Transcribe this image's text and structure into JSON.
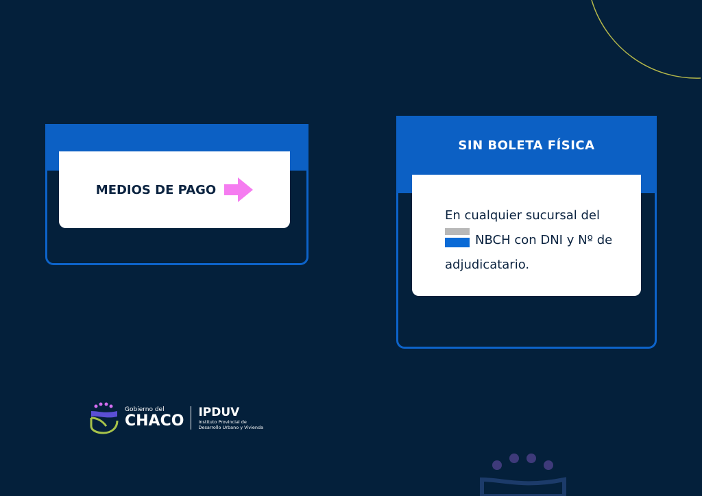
{
  "card_left": {
    "label": "MEDIOS DE PAGO",
    "icon": "arrow-right-icon",
    "arrow_color": "#f57cf0"
  },
  "card_right": {
    "title": "SIN BOLETA FÍSICA",
    "line1": "En cualquier sucursal del",
    "line2": "NBCH con DNI y Nº de",
    "line3": "adjudicatario.",
    "icon": "nbch-logo-icon"
  },
  "footer": {
    "gov_small": "Gobierno del",
    "gov_big": "CHACO",
    "org": "IPDUV",
    "org_line1": "Instituto Provincial de",
    "org_line2": "Desarrollo Urbano y Vivienda"
  },
  "colors": {
    "background": "#04203b",
    "accent": "#0c60c4"
  }
}
